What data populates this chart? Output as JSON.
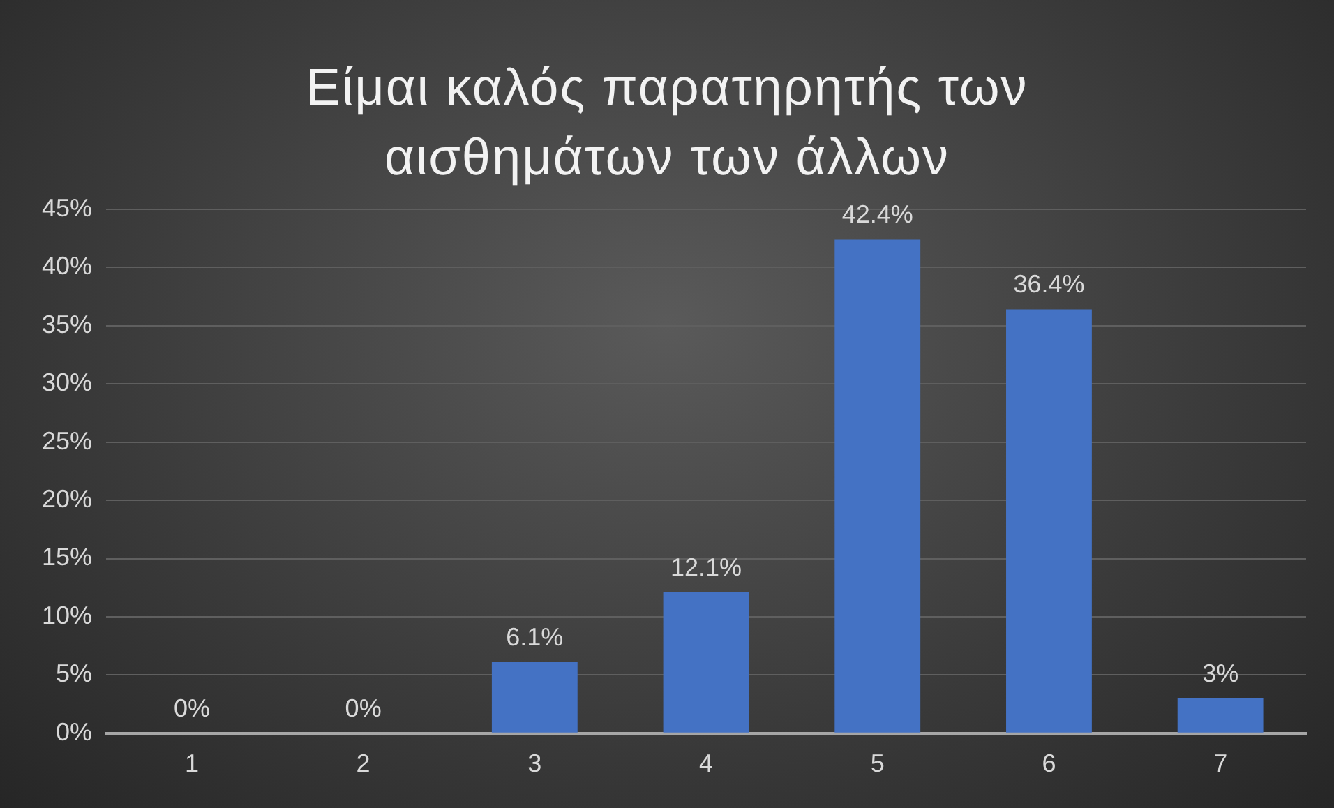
{
  "chart_data": {
    "type": "bar",
    "title": "Είμαι καλός παρατηρητής των αισθημάτων των άλλων",
    "categories": [
      "1",
      "2",
      "3",
      "4",
      "5",
      "6",
      "7"
    ],
    "values": [
      0,
      0,
      6.1,
      12.1,
      42.4,
      36.4,
      3
    ],
    "value_labels": [
      "0%",
      "0%",
      "6.1%",
      "12.1%",
      "42.4%",
      "36.4%",
      "3%"
    ],
    "color": "#4472c4",
    "ylim": [
      0,
      45
    ],
    "yticks": [
      {
        "value": 0,
        "label": "0%"
      },
      {
        "value": 5,
        "label": "5%"
      },
      {
        "value": 10,
        "label": "10%"
      },
      {
        "value": 15,
        "label": "15%"
      },
      {
        "value": 20,
        "label": "20%"
      },
      {
        "value": 25,
        "label": "25%"
      },
      {
        "value": 30,
        "label": "30%"
      },
      {
        "value": 35,
        "label": "35%"
      },
      {
        "value": 40,
        "label": "40%"
      },
      {
        "value": 45,
        "label": "45%"
      }
    ],
    "grid": "y",
    "legend": false
  }
}
